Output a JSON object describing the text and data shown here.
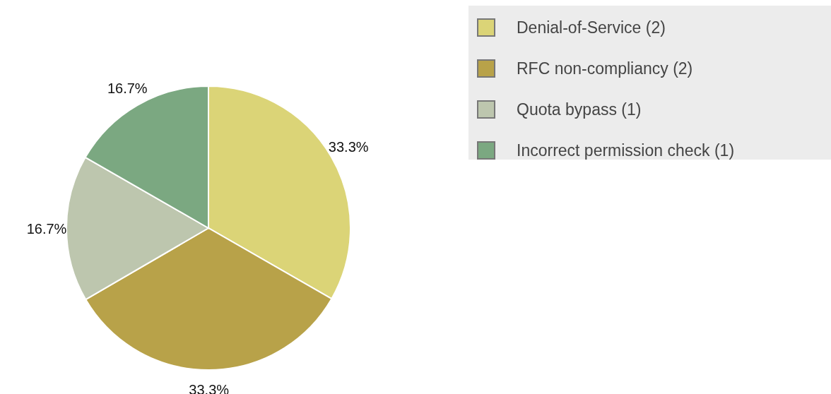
{
  "chart_data": {
    "type": "pie",
    "categories": [
      "Denial-of-Service (2)",
      "RFC non-compliancy (2)",
      "Quota bypass (1)",
      "Incorrect permission check (1)"
    ],
    "values": [
      33.3,
      33.3,
      16.7,
      16.7
    ],
    "value_labels": [
      "33.3%",
      "33.3%",
      "16.7%",
      "16.7%"
    ],
    "colors": [
      "#dbd477",
      "#b8a249",
      "#bdc6ae",
      "#7ba881"
    ],
    "legend": "top right"
  }
}
